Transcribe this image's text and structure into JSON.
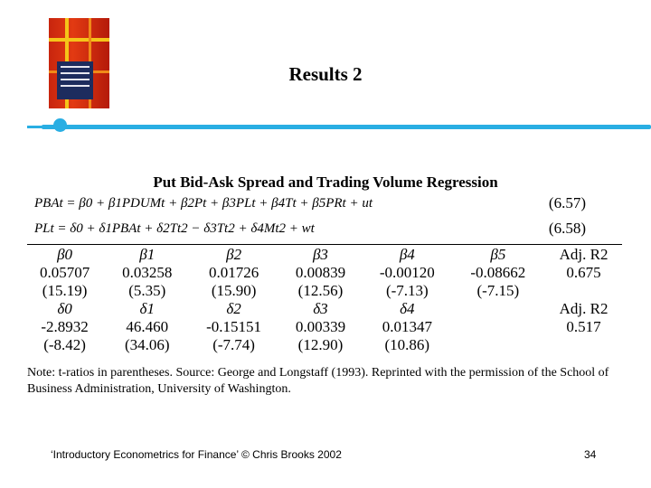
{
  "slide": {
    "title": "Results 2",
    "footer": "‘Introductory Econometrics for Finance’ © Chris Brooks 2002",
    "page_number": "34",
    "accent_color": "#29aee3"
  },
  "table": {
    "title": "Put Bid-Ask Spread and Trading Volume Regression",
    "eq1": "PBAt = β0 + β1PDUMt + β2Pt + β3PLt + β4Tt + β5PRt + ut",
    "eq1_num": "(6.57)",
    "eq2": "PLt = δ0 + δ1PBAt + δ2Tt2 − δ3Tt2 + δ4Mt2 + wt",
    "eq2_num": "(6.58)",
    "row1": {
      "headers": [
        "β0",
        "β1",
        "β2",
        "β3",
        "β4",
        "β5",
        "Adj. R2"
      ],
      "values": [
        "0.05707",
        "0.03258",
        "0.01726",
        "0.00839",
        "-0.00120",
        "-0.08662",
        "0.675"
      ],
      "tratios": [
        "(15.19)",
        "(5.35)",
        "(15.90)",
        "(12.56)",
        "(-7.13)",
        "(-7.15)",
        ""
      ]
    },
    "row2": {
      "headers": [
        "δ0",
        "δ1",
        "δ2",
        "δ3",
        "δ4",
        "",
        "Adj. R2"
      ],
      "values": [
        "-2.8932",
        "46.460",
        "-0.15151",
        "0.00339",
        "0.01347",
        "",
        "0.517"
      ],
      "tratios": [
        "(-8.42)",
        "(34.06)",
        "(-7.74)",
        "(12.90)",
        "(10.86)",
        "",
        ""
      ]
    },
    "note": "Note: t-ratios in parentheses. Source: George and Longstaff (1993). Reprinted with the permission of the School of Business Administration, University of Washington."
  }
}
